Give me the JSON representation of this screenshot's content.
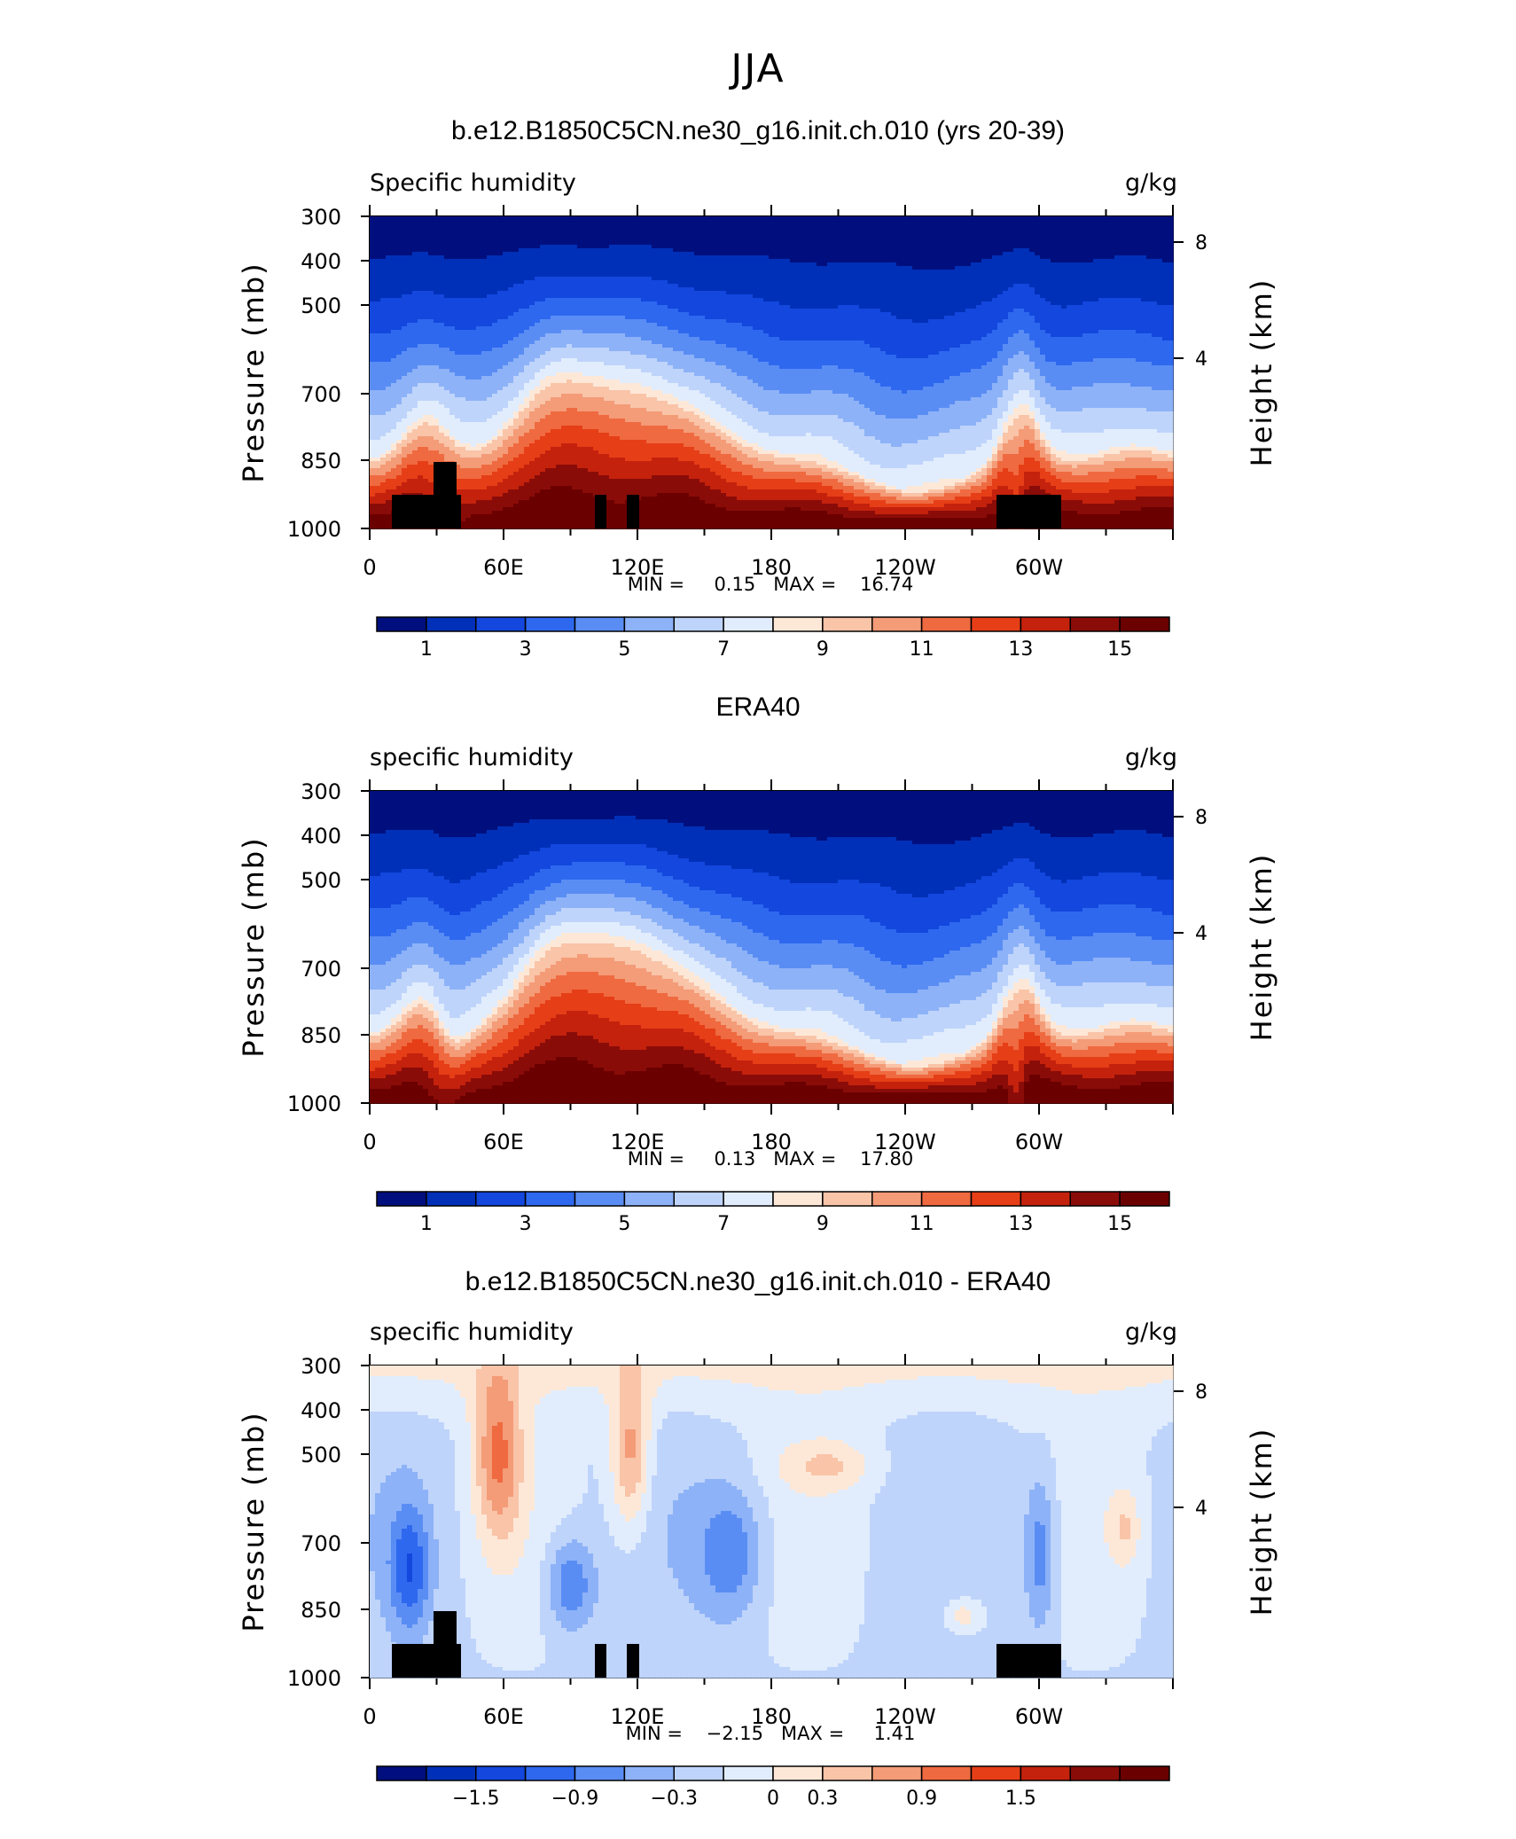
{
  "figure": {
    "title": "JJA"
  },
  "colors": {
    "sequential": [
      "#000f7d",
      "#0030b8",
      "#1347dd",
      "#2e68ef",
      "#5a8df4",
      "#8db2f7",
      "#bfd4fb",
      "#e1edfd",
      "#fde8d8",
      "#f9c4a8",
      "#f49b78",
      "#ef6a40",
      "#e63e17",
      "#c4220d",
      "#8a0c08",
      "#6b0000"
    ],
    "land": "#000000"
  },
  "chart_data": [
    {
      "type": "heatmap",
      "panel_title": "b.e12.B1850C5CN.ne30_g16.init.ch.010 (yrs 20-39)",
      "left_label": "Specific humidity",
      "right_label": "g/kg",
      "ylabel": "Pressure (mb)",
      "ylabel_right": "Height (km)",
      "yticks": [
        "300",
        "400",
        "500",
        "700",
        "850",
        "1000"
      ],
      "yticks_right": [
        "8",
        "4"
      ],
      "xticks": [
        "0",
        "60E",
        "120E",
        "180",
        "120W",
        "60W"
      ],
      "stats": "MIN =     0.15   MAX =    16.74",
      "colorbar_labels": [
        "1",
        "3",
        "5",
        "7",
        "9",
        "11",
        "13",
        "15"
      ],
      "colorbar_levels": 16
    },
    {
      "type": "heatmap",
      "panel_title": "ERA40",
      "left_label": "specific humidity",
      "right_label": "g/kg",
      "ylabel": "Pressure (mb)",
      "ylabel_right": "Height (km)",
      "yticks": [
        "300",
        "400",
        "500",
        "700",
        "850",
        "1000"
      ],
      "yticks_right": [
        "8",
        "4"
      ],
      "xticks": [
        "0",
        "60E",
        "120E",
        "180",
        "120W",
        "60W"
      ],
      "stats": "MIN =     0.13   MAX =    17.80",
      "colorbar_labels": [
        "1",
        "3",
        "5",
        "7",
        "9",
        "11",
        "13",
        "15"
      ],
      "colorbar_levels": 16
    },
    {
      "type": "heatmap",
      "panel_title": "b.e12.B1850C5CN.ne30_g16.init.ch.010 - ERA40",
      "left_label": "specific humidity",
      "right_label": "g/kg",
      "ylabel": "Pressure (mb)",
      "ylabel_right": "Height (km)",
      "yticks": [
        "300",
        "400",
        "500",
        "700",
        "850",
        "1000"
      ],
      "yticks_right": [
        "8",
        "4"
      ],
      "xticks": [
        "0",
        "60E",
        "120E",
        "180",
        "120W",
        "60W"
      ],
      "stats": "MIN =    −2.15   MAX =     1.41",
      "colorbar_labels": [
        "−1.5",
        "−0.9",
        "−0.3",
        "0",
        "0.3",
        "0.9",
        "1.5"
      ],
      "colorbar_levels": 16
    }
  ]
}
